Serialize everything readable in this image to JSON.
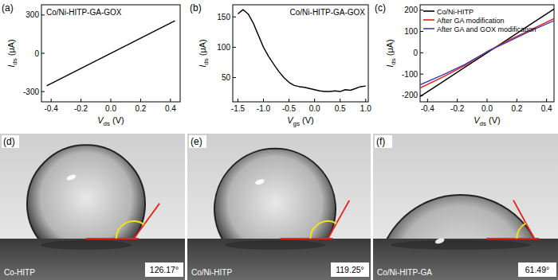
{
  "chart_data": [
    {
      "type": "line",
      "panel_label": "(a)",
      "title": "Co/Ni-HITP-GA-GOX",
      "x_label": "Vds (V)",
      "y_label": "Ids (μA)",
      "x": [
        -0.43,
        0.43
      ],
      "series": [
        {
          "color": "#000000",
          "values": [
            -255,
            255
          ]
        }
      ],
      "xlim": [
        -0.465,
        0.465
      ],
      "ylim": [
        -380,
        380
      ],
      "xticks": [
        -0.4,
        -0.2,
        {
          "value": 0,
          "label": "0.0"
        },
        0.2,
        0.4
      ],
      "yticks": [
        -300,
        0,
        300
      ],
      "grid": false
    },
    {
      "type": "line",
      "panel_label": "(b)",
      "title": "Co/Ni-HITP-GA-GOX",
      "x_label": "Vgs (V)",
      "y_label": "Ids (μA)",
      "x": [
        -1.5,
        -1.4,
        -1.3,
        -1.2,
        -1.1,
        -1.0,
        -0.9,
        -0.8,
        -0.7,
        -0.6,
        -0.5,
        -0.4,
        -0.3,
        -0.2,
        -0.1,
        0.0,
        0.1,
        0.2,
        0.3,
        0.4,
        0.5,
        0.6,
        0.7,
        0.8,
        0.9,
        1.0
      ],
      "series": [
        {
          "color": "#000000",
          "values": [
            155,
            162,
            155,
            140,
            120,
            100,
            85,
            72,
            60,
            50,
            42,
            37,
            35,
            34,
            32,
            30,
            28,
            27,
            27,
            28,
            27,
            30,
            29,
            32,
            35,
            36
          ]
        }
      ],
      "xlim": [
        -1.6,
        1.05
      ],
      "ylim": [
        10,
        170
      ],
      "xticks": [
        -1.5,
        {
          "value": -1,
          "label": "-1.0"
        },
        -0.5,
        {
          "value": 0,
          "label": "0.0"
        },
        0.5,
        {
          "value": 1,
          "label": "1.0"
        }
      ],
      "yticks": [
        50,
        100,
        150
      ],
      "grid": false
    },
    {
      "type": "line",
      "panel_label": "(c)",
      "x_label": "Vds (V)",
      "y_label": "Ids (μA)",
      "x": [
        -0.45,
        -0.3,
        -0.15,
        0,
        0.15,
        0.3,
        0.45
      ],
      "series": [
        {
          "name": "Co/Ni-HITP",
          "color": "#000000",
          "values": [
            -205,
            -137,
            -68,
            0,
            68,
            137,
            205
          ]
        },
        {
          "name": "After GA modification",
          "color": "#e0201b",
          "values": [
            -165,
            -115,
            -60,
            5,
            60,
            110,
            160
          ]
        },
        {
          "name": "After GA and GOX modification",
          "color": "#3b3bb3",
          "values": [
            -150,
            -105,
            -55,
            5,
            55,
            105,
            150
          ]
        }
      ],
      "xlim": [
        -0.45,
        0.45
      ],
      "ylim": [
        -230,
        225
      ],
      "xticks": [
        -0.4,
        -0.2,
        {
          "value": 0,
          "label": "0.0"
        },
        0.2,
        0.4
      ],
      "yticks": [
        -200,
        -100,
        0,
        100,
        200
      ],
      "grid": false,
      "legend": "upper left"
    }
  ],
  "contact_angle_images": [
    {
      "panel_label": "(d)",
      "sample": "Co-HITP",
      "contact_angle": 126.17,
      "angle_label": "126.17°"
    },
    {
      "panel_label": "(e)",
      "sample": "Co/Ni-HITP",
      "contact_angle": 119.25,
      "angle_label": "119.25°"
    },
    {
      "panel_label": "(f)",
      "sample": "Co/Ni-HITP-GA",
      "contact_angle": 61.49,
      "angle_label": "61.49°"
    }
  ]
}
